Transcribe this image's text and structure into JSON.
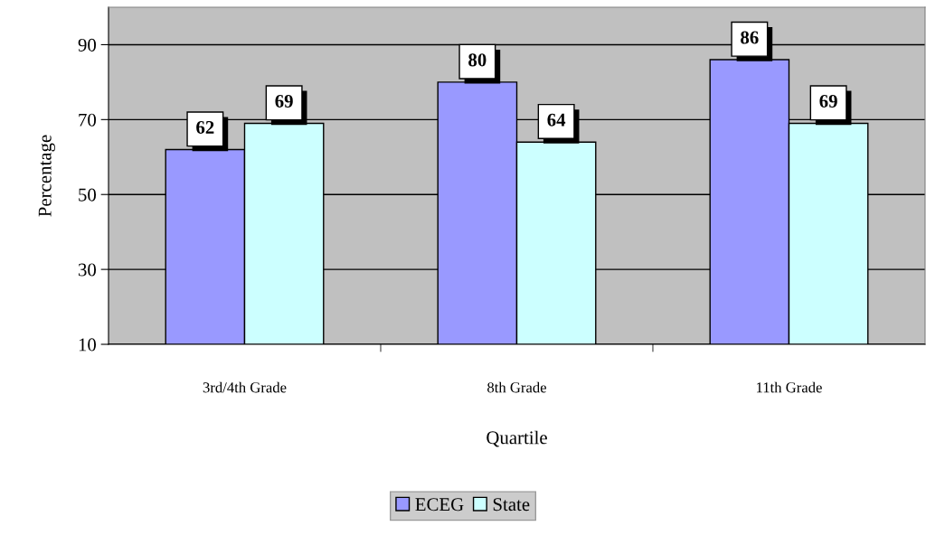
{
  "chart_data": {
    "type": "bar",
    "xlabel": "Quartile",
    "ylabel": "Percentage",
    "categories": [
      "3rd/4th Grade",
      "8th Grade",
      "11th Grade"
    ],
    "series": [
      {
        "name": "ECEG",
        "color": "#9999ff",
        "values": [
          62,
          80,
          86
        ]
      },
      {
        "name": "State",
        "color": "#ccffff",
        "values": [
          69,
          64,
          69
        ]
      }
    ],
    "ylim": [
      10,
      100
    ],
    "yticks": [
      10,
      30,
      50,
      70,
      90
    ],
    "grid": "y",
    "legend": "bottom",
    "data_labels": true
  }
}
